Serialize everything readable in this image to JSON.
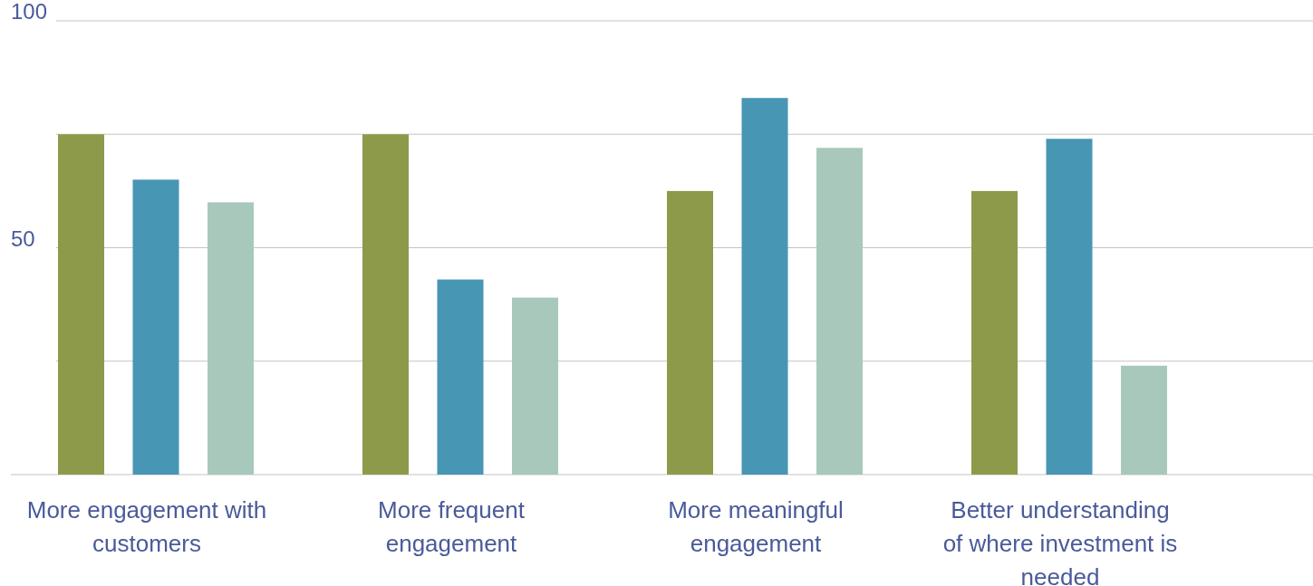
{
  "chart_data": {
    "type": "bar",
    "categories": [
      "More engagement with customers",
      "More frequent engagement",
      "More meaningful engagement",
      "Better understanding of where investment is needed"
    ],
    "series": [
      {
        "color": "#8d9a4a",
        "values": [
          75,
          75,
          62.5,
          62.5
        ]
      },
      {
        "color": "#4796b4",
        "values": [
          65,
          43,
          83,
          74
        ]
      },
      {
        "color": "#a8c8bc",
        "values": [
          60,
          39,
          72,
          24
        ]
      }
    ],
    "ylim": [
      0,
      100
    ],
    "yticks": [
      {
        "value": 0,
        "label": null
      },
      {
        "value": 25,
        "label": null
      },
      50,
      {
        "value": 75,
        "label": null
      },
      100
    ],
    "grid": "y"
  }
}
